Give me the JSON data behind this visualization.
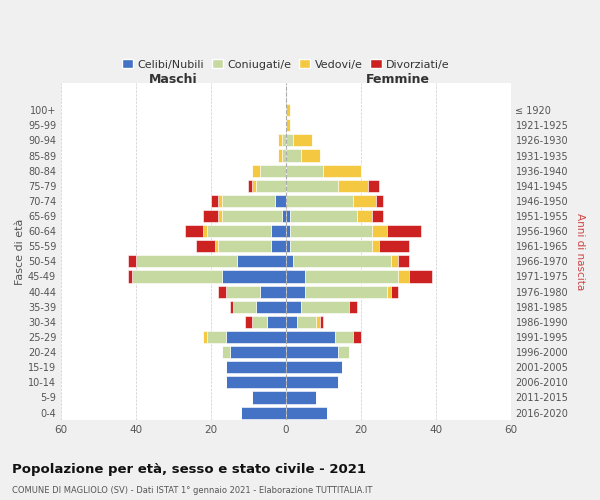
{
  "age_groups": [
    "0-4",
    "5-9",
    "10-14",
    "15-19",
    "20-24",
    "25-29",
    "30-34",
    "35-39",
    "40-44",
    "45-49",
    "50-54",
    "55-59",
    "60-64",
    "65-69",
    "70-74",
    "75-79",
    "80-84",
    "85-89",
    "90-94",
    "95-99",
    "100+"
  ],
  "birth_years": [
    "2016-2020",
    "2011-2015",
    "2006-2010",
    "2001-2005",
    "1996-2000",
    "1991-1995",
    "1986-1990",
    "1981-1985",
    "1976-1980",
    "1971-1975",
    "1966-1970",
    "1961-1965",
    "1956-1960",
    "1951-1955",
    "1946-1950",
    "1941-1945",
    "1936-1940",
    "1931-1935",
    "1926-1930",
    "1921-1925",
    "≤ 1920"
  ],
  "male": {
    "celibi": [
      12,
      9,
      16,
      16,
      15,
      16,
      5,
      8,
      7,
      17,
      13,
      4,
      4,
      1,
      3,
      0,
      0,
      0,
      0,
      0,
      0
    ],
    "coniugati": [
      0,
      0,
      0,
      0,
      2,
      5,
      4,
      6,
      9,
      24,
      27,
      14,
      17,
      16,
      14,
      8,
      7,
      1,
      1,
      0,
      0
    ],
    "vedovi": [
      0,
      0,
      0,
      0,
      0,
      1,
      0,
      0,
      0,
      0,
      0,
      1,
      1,
      1,
      1,
      1,
      2,
      1,
      1,
      0,
      0
    ],
    "divorziati": [
      0,
      0,
      0,
      0,
      0,
      0,
      2,
      1,
      2,
      1,
      2,
      5,
      5,
      4,
      2,
      1,
      0,
      0,
      0,
      0,
      0
    ]
  },
  "female": {
    "nubili": [
      11,
      8,
      14,
      15,
      14,
      13,
      3,
      4,
      5,
      5,
      2,
      1,
      1,
      1,
      0,
      0,
      0,
      0,
      0,
      0,
      0
    ],
    "coniugate": [
      0,
      0,
      0,
      0,
      3,
      5,
      5,
      13,
      22,
      25,
      26,
      22,
      22,
      18,
      18,
      14,
      10,
      4,
      2,
      0,
      0
    ],
    "vedove": [
      0,
      0,
      0,
      0,
      0,
      0,
      1,
      0,
      1,
      3,
      2,
      2,
      4,
      4,
      6,
      8,
      10,
      5,
      5,
      1,
      1
    ],
    "divorziate": [
      0,
      0,
      0,
      0,
      0,
      2,
      1,
      2,
      2,
      6,
      3,
      8,
      9,
      3,
      2,
      3,
      0,
      0,
      0,
      0,
      0
    ]
  },
  "colors": {
    "celibi": "#4472c4",
    "coniugati": "#c5d9a0",
    "vedovi": "#f5c842",
    "divorziati": "#cc2222"
  },
  "xlim": 60,
  "title": "Popolazione per età, sesso e stato civile - 2021",
  "subtitle": "COMUNE DI MAGLIOLO (SV) - Dati ISTAT 1° gennaio 2021 - Elaborazione TUTTITALIA.IT",
  "ylabel_left": "Fasce di età",
  "ylabel_right": "Anni di nascita",
  "xlabel_left": "Maschi",
  "xlabel_right": "Femmine",
  "legend_labels": [
    "Celibi/Nubili",
    "Coniugati/e",
    "Vedovi/e",
    "Divorziati/e"
  ],
  "bg_color": "#f0f0f0",
  "plot_bg_color": "#ffffff"
}
